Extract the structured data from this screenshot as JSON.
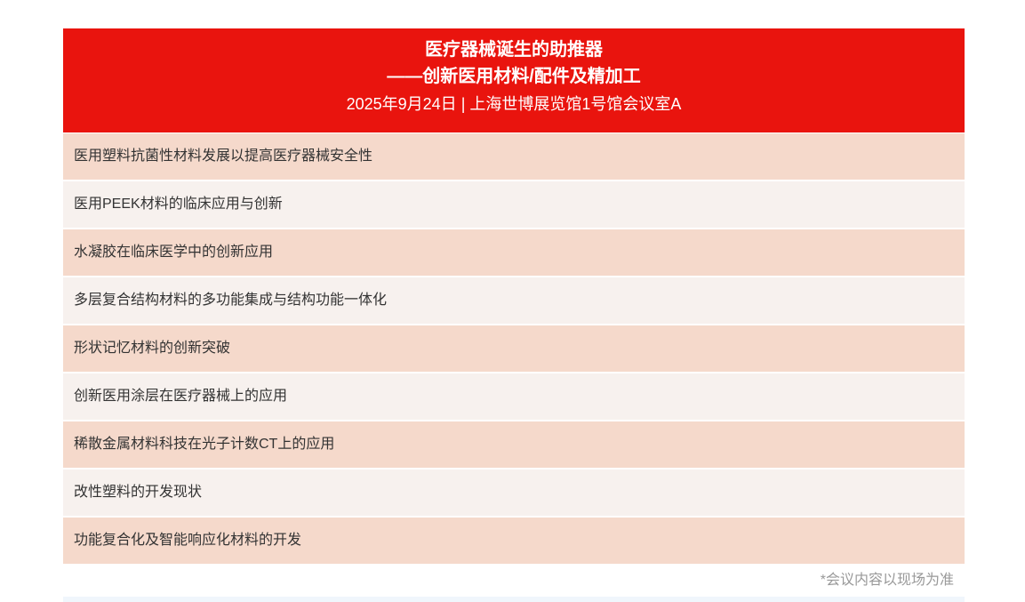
{
  "header": {
    "title_line1": "医疗器械诞生的助推器",
    "title_line2": "——创新医用材料/配件及精加工",
    "date": "2025年9月24日",
    "separator": "|",
    "venue": "上海世博展览馆1号馆会议室A"
  },
  "topics": [
    "医用塑料抗菌性材料发展以提高医疗器械安全性",
    "医用PEEK材料的临床应用与创新",
    "水凝胶在临床医学中的创新应用",
    "多层复合结构材料的多功能集成与结构功能一体化",
    "形状记忆材料的创新突破",
    "创新医用涂层在医疗器械上的应用",
    "稀散金属材料科技在光子计数CT上的应用",
    "改性塑料的开发现状",
    "功能复合化及智能响应化材料的开发"
  ],
  "note": "*会议内容以现场为准",
  "colors": {
    "header": "#e9140e",
    "row_odd": "#f5d9cb",
    "row_even": "#f7f1ee"
  }
}
